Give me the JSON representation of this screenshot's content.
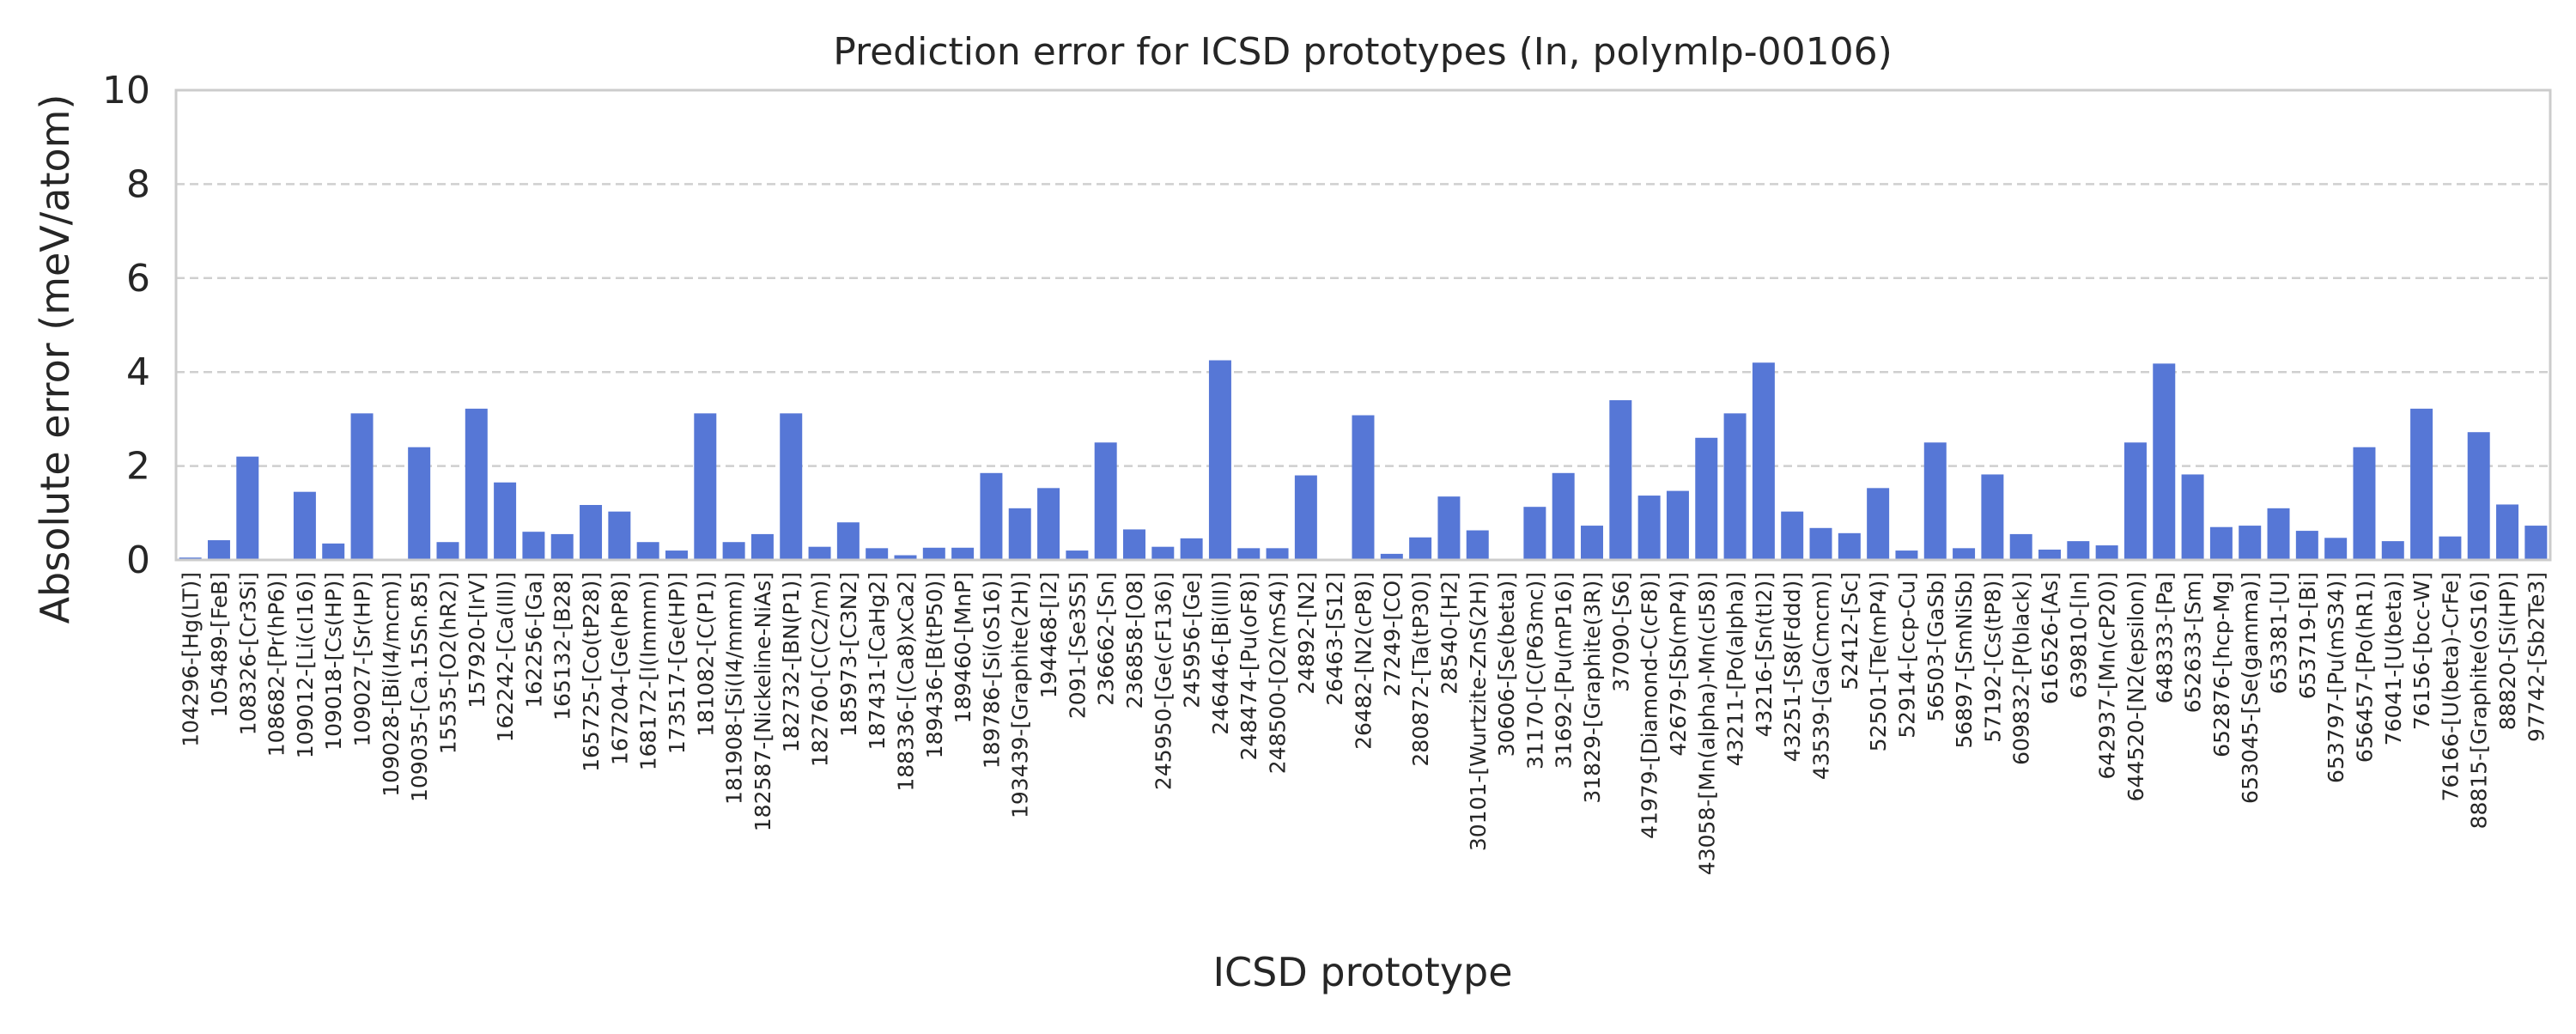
{
  "chart_data": {
    "type": "bar",
    "title": "Prediction error for ICSD prototypes (In, polymlp-00106)",
    "xlabel": "ICSD prototype",
    "ylabel": "Absolute error (meV/atom)",
    "ylim": [
      0,
      10
    ],
    "yticks": [
      0,
      2,
      4,
      6,
      8,
      10
    ],
    "grid": true,
    "bar_color": "#5677d6",
    "categories": [
      "104296-[Hg(LT)]",
      "105489-[FeB]",
      "108326-[Cr3Si]",
      "108682-[Pr(hP6)]",
      "109012-[Li(cI16)]",
      "109018-[Cs(HP)]",
      "109027-[Sr(HP)]",
      "109028-[Bi(I4/mcm)]",
      "109035-[Ca.15Sn.85]",
      "15535-[O2(hR2)]",
      "157920-[IrV]",
      "162242-[Ca(III)]",
      "162256-[Ga]",
      "165132-[B28]",
      "165725-[Co(tP28)]",
      "167204-[Ge(hP8)]",
      "168172-[I(Immm)]",
      "173517-[Ge(HP)]",
      "181082-[C(P1)]",
      "181908-[Si(I4/mmm)]",
      "182587-[Nickeline-NiAs]",
      "182732-[BN(P1)]",
      "182760-[C(C2/m)]",
      "185973-[C3N2]",
      "187431-[CaHg2]",
      "188336-[(Ca8)xCa2]",
      "189436-[B(tP50)]",
      "189460-[MnP]",
      "189786-[Si(oS16)]",
      "193439-[Graphite(2H)]",
      "194468-[I2]",
      "2091-[Se3S5]",
      "236662-[Sn]",
      "236858-[O8]",
      "245950-[Ge(cF136)]",
      "245956-[Ge]",
      "246446-[Bi(III)]",
      "248474-[Pu(oF8)]",
      "248500-[O2(mS4)]",
      "24892-[N2]",
      "26463-[S12]",
      "26482-[N2(cP8)]",
      "27249-[CO]",
      "280872-[Ta(tP30)]",
      "28540-[H2]",
      "30101-[Wurtzite-ZnS(2H)]",
      "30606-[Se(beta)]",
      "31170-[C(P63mc)]",
      "31692-[Pu(mP16)]",
      "31829-[Graphite(3R)]",
      "37090-[S6]",
      "41979-[Diamond-C(cF8)]",
      "42679-[Sb(mP4)]",
      "43058-[Mn(alpha)-Mn(cI58)]",
      "43211-[Po(alpha)]",
      "43216-[Sn(tI2)]",
      "43251-[S8(Fddd)]",
      "43539-[Ga(Cmcm)]",
      "52412-[Sc]",
      "52501-[Te(mP4)]",
      "52914-[ccp-Cu]",
      "56503-[GaSb]",
      "56897-[SmNiSb]",
      "57192-[Cs(tP8)]",
      "609832-[P(black)]",
      "616526-[As]",
      "639810-[In]",
      "642937-[Mn(cP20)]",
      "644520-[N2(epsilon)]",
      "648333-[Pa]",
      "652633-[Sm]",
      "652876-[hcp-Mg]",
      "653045-[Se(gamma)]",
      "653381-[U]",
      "653719-[Bi]",
      "653797-[Pu(mS34)]",
      "656457-[Po(hR1)]",
      "76041-[U(beta)]",
      "76156-[bcc-W]",
      "76166-[U(beta)-CrFe]",
      "88815-[Graphite(oS16)]",
      "88820-[Si(HP)]",
      "97742-[Sb2Te3]"
    ],
    "values": [
      0.05,
      0.42,
      2.2,
      0.0,
      1.45,
      0.35,
      3.12,
      0.0,
      2.4,
      0.38,
      3.22,
      1.65,
      0.6,
      0.55,
      1.17,
      1.03,
      0.38,
      0.2,
      3.12,
      0.38,
      0.55,
      3.12,
      0.28,
      0.8,
      0.25,
      0.1,
      0.26,
      0.26,
      1.85,
      1.1,
      1.53,
      0.2,
      2.5,
      0.65,
      0.28,
      0.46,
      4.25,
      0.25,
      0.25,
      1.8,
      0.0,
      3.08,
      0.13,
      0.48,
      1.35,
      0.63,
      0.0,
      1.13,
      1.85,
      0.73,
      3.4,
      1.37,
      1.47,
      2.6,
      3.12,
      4.2,
      1.03,
      0.68,
      0.57,
      1.53,
      0.2,
      2.5,
      0.25,
      1.82,
      0.55,
      0.22,
      0.4,
      0.31,
      2.5,
      4.18,
      1.82,
      0.7,
      0.73,
      1.1,
      0.62,
      0.47,
      2.4,
      0.4,
      3.22,
      0.5,
      2.72,
      1.18,
      0.73
    ]
  }
}
